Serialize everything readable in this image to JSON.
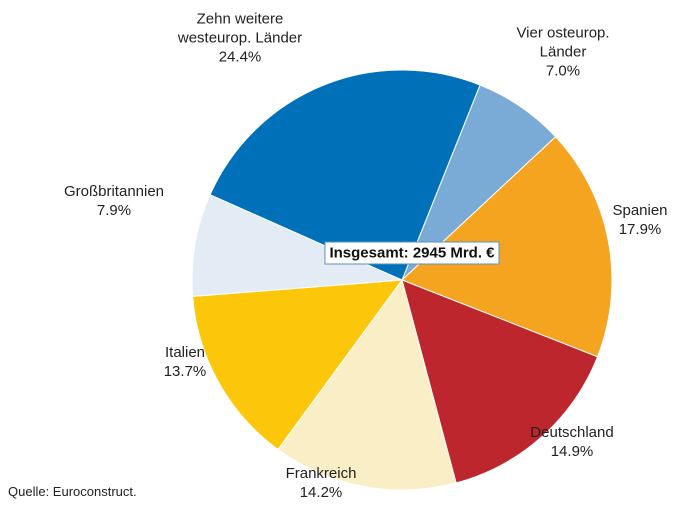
{
  "chart_data": {
    "type": "pie",
    "categories": [
      "Vier osteurop. Länder",
      "Spanien",
      "Deutschland",
      "Frankreich",
      "Italien",
      "Großbritannien",
      "Zehn weitere westeurop. Länder"
    ],
    "values": [
      7.0,
      17.9,
      14.9,
      14.2,
      13.7,
      7.9,
      24.4
    ],
    "value_labels": [
      "7.0%",
      "17.9%",
      "14.9%",
      "14.2%",
      "13.7%",
      "7.9%",
      "24.4%"
    ],
    "colors": [
      "#7aaad6",
      "#f4a41f",
      "#be262e",
      "#faeec6",
      "#fcc70b",
      "#e3ebf5",
      "#0071b9"
    ],
    "annotation": "Insgesamt: 2945 Mrd. €",
    "source": "Quelle: Euroconstruct."
  }
}
